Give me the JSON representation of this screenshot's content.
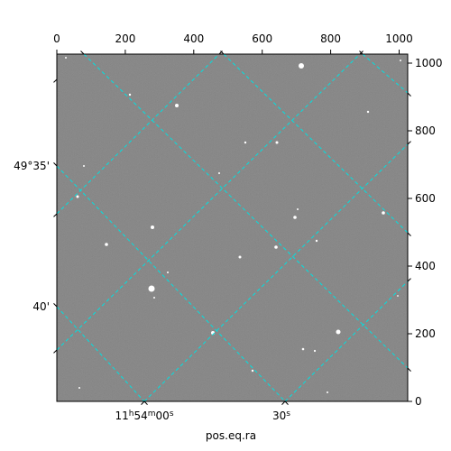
{
  "figure": {
    "background_color": "#ffffff",
    "image_color": "#7a7a7a",
    "grid_color": "#00e0e0"
  },
  "top_axis": {
    "ticks": [
      "0",
      "200",
      "400",
      "600",
      "800",
      "1000"
    ]
  },
  "right_axis": {
    "ticks": [
      "1000",
      "800",
      "600",
      "400",
      "200",
      "0"
    ]
  },
  "left_axis": {
    "ticks": [
      "49°35'",
      "40'"
    ]
  },
  "bottom_axis": {
    "tick_ra_1_base": "11",
    "tick_ra_1_h": "h",
    "tick_ra_1_min": "54",
    "tick_ra_1_m": "m",
    "tick_ra_1_sec": "00",
    "tick_ra_1_s": "s",
    "tick_ra_2_sec": "30",
    "tick_ra_2_s": "s",
    "label": "pos.eq.ra"
  }
}
